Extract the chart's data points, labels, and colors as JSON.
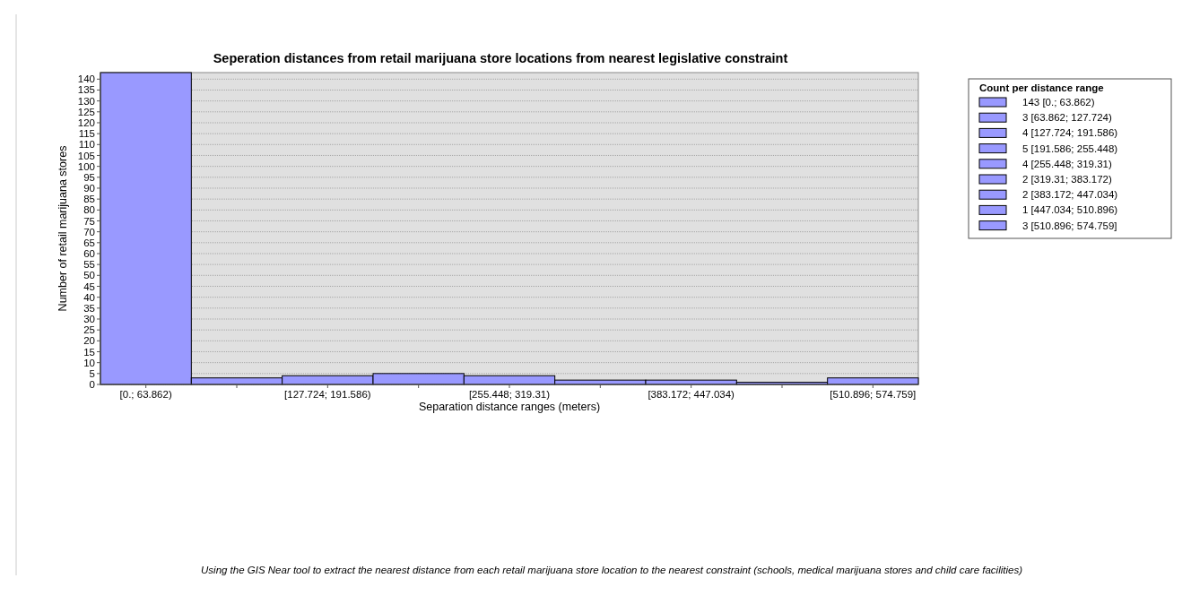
{
  "chart_data": {
    "type": "bar",
    "title": "Seperation distances from retail marijuana store locations from nearest legislative constraint",
    "xlabel": "Separation distance ranges (meters)",
    "ylabel": "Number of retail marijuana stores",
    "legend_title": "Count per distance range",
    "categories": [
      "[0.; 63.862)",
      null,
      "[127.724; 191.586)",
      null,
      "[255.448; 319.31)",
      null,
      "[383.172; 447.034)",
      null,
      "[510.896; 574.759]"
    ],
    "series": [
      {
        "name": "143 [0.; 63.862)",
        "color": "#9999ff",
        "values": [
          143,
          null,
          null,
          null,
          null,
          null,
          null,
          null,
          null
        ]
      },
      {
        "name": "3 [63.862; 127.724)",
        "color": "#9999ff",
        "values": [
          null,
          3,
          null,
          null,
          null,
          null,
          null,
          null,
          null
        ]
      },
      {
        "name": "4 [127.724; 191.586)",
        "color": "#9999ff",
        "values": [
          null,
          null,
          4,
          null,
          null,
          null,
          null,
          null,
          null
        ]
      },
      {
        "name": "5 [191.586; 255.448)",
        "color": "#9999ff",
        "values": [
          null,
          null,
          null,
          5,
          null,
          null,
          null,
          null,
          null
        ]
      },
      {
        "name": "4 [255.448; 319.31)",
        "color": "#9999ff",
        "values": [
          null,
          null,
          null,
          null,
          4,
          null,
          null,
          null,
          null
        ]
      },
      {
        "name": "2 [319.31; 383.172)",
        "color": "#9999ff",
        "values": [
          null,
          null,
          null,
          null,
          null,
          2,
          null,
          null,
          null
        ]
      },
      {
        "name": "2 [383.172; 447.034)",
        "color": "#9999ff",
        "values": [
          null,
          null,
          null,
          null,
          null,
          null,
          2,
          null,
          null
        ]
      },
      {
        "name": "1 [447.034; 510.896)",
        "color": "#9999ff",
        "values": [
          null,
          null,
          null,
          null,
          null,
          null,
          null,
          1,
          null
        ]
      },
      {
        "name": "3 [510.896; 574.759]",
        "color": "#9999ff",
        "values": [
          null,
          null,
          null,
          null,
          null,
          null,
          null,
          null,
          3
        ]
      }
    ],
    "ylim": [
      0,
      143
    ],
    "yticks": [
      0,
      5,
      10,
      15,
      20,
      25,
      30,
      35,
      40,
      45,
      50,
      55,
      60,
      65,
      70,
      75,
      80,
      85,
      90,
      95,
      100,
      105,
      110,
      115,
      120,
      125,
      130,
      135,
      140
    ],
    "grid": "y",
    "legend": "top right",
    "annotations": [
      "Using the GIS Near tool to extract the nearest distance from each retail marijuana store location to the nearest constraint (schools, medical marijuana stores and child care facilities)"
    ]
  }
}
